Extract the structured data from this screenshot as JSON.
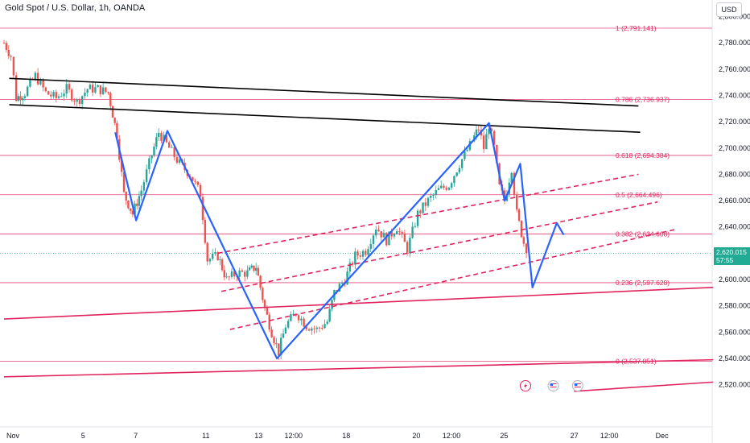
{
  "header": {
    "title": "Gold Spot / U.S. Dollar, 1h, OANDA"
  },
  "currency_button": "USD",
  "last_price": {
    "value": "2,620.015",
    "countdown": "57:55"
  },
  "colors": {
    "up": "#26a69a",
    "down": "#ef5350",
    "fib": "#e0245e",
    "channel": "#e0245e",
    "trendline": "#000000",
    "wave": "#2962ff",
    "last_price": "#22ab94"
  },
  "icons": [
    "lightning-event-icon",
    "us-flag-event-icon",
    "us-flag-event-icon"
  ],
  "chart_data": {
    "type": "candlestick",
    "title": "Gold Spot / U.S. Dollar, 1h, OANDA",
    "ylim": [
      2505,
      2805
    ],
    "y_ticks": [
      2520,
      2540,
      2560,
      2580,
      2600,
      2620,
      2640,
      2660,
      2680,
      2700,
      2720,
      2740,
      2760,
      2780,
      2800
    ],
    "x_ticks": [
      "Nov",
      "5",
      "7",
      "11",
      "13",
      "12:00",
      "18",
      "20",
      "12:00",
      "25",
      "27",
      "12:00",
      "Dec"
    ],
    "x_tick_index": [
      0,
      4,
      7,
      11,
      14,
      16,
      19,
      23,
      25,
      28,
      32,
      34,
      37
    ],
    "fib_levels": [
      {
        "label": "1 (2,791.141)",
        "value": 2791.141
      },
      {
        "label": "0.786 (2,736.937)",
        "value": 2736.937
      },
      {
        "label": "0.618 (2,694.384)",
        "value": 2694.384
      },
      {
        "label": "0.5 (2,664.496)",
        "value": 2664.496
      },
      {
        "label": "0.382 (2,634.608)",
        "value": 2634.608
      },
      {
        "label": "0.236 (2,597.628)",
        "value": 2597.628
      },
      {
        "label": "0 (2,537.851)",
        "value": 2537.851
      }
    ],
    "price_series": [
      {
        "t": 0.0,
        "p": 2780
      },
      {
        "t": 0.4,
        "p": 2770
      },
      {
        "t": 0.7,
        "p": 2738
      },
      {
        "t": 1.2,
        "p": 2742
      },
      {
        "t": 1.8,
        "p": 2755
      },
      {
        "t": 2.4,
        "p": 2742
      },
      {
        "t": 3.0,
        "p": 2738
      },
      {
        "t": 3.6,
        "p": 2745
      },
      {
        "t": 4.2,
        "p": 2735
      },
      {
        "t": 4.8,
        "p": 2745
      },
      {
        "t": 5.4,
        "p": 2745
      },
      {
        "t": 6.0,
        "p": 2742
      },
      {
        "t": 6.5,
        "p": 2710
      },
      {
        "t": 6.9,
        "p": 2665
      },
      {
        "t": 7.4,
        "p": 2650
      },
      {
        "t": 7.9,
        "p": 2668
      },
      {
        "t": 8.5,
        "p": 2695
      },
      {
        "t": 8.9,
        "p": 2712
      },
      {
        "t": 9.5,
        "p": 2700
      },
      {
        "t": 10.1,
        "p": 2688
      },
      {
        "t": 10.7,
        "p": 2680
      },
      {
        "t": 11.3,
        "p": 2665
      },
      {
        "t": 11.7,
        "p": 2615
      },
      {
        "t": 12.3,
        "p": 2618
      },
      {
        "t": 12.8,
        "p": 2600
      },
      {
        "t": 13.4,
        "p": 2605
      },
      {
        "t": 14.0,
        "p": 2605
      },
      {
        "t": 14.5,
        "p": 2610
      },
      {
        "t": 15.0,
        "p": 2578
      },
      {
        "t": 15.4,
        "p": 2560
      },
      {
        "t": 15.8,
        "p": 2545
      },
      {
        "t": 16.2,
        "p": 2565
      },
      {
        "t": 16.8,
        "p": 2575
      },
      {
        "t": 17.4,
        "p": 2565
      },
      {
        "t": 18.0,
        "p": 2562
      },
      {
        "t": 18.6,
        "p": 2568
      },
      {
        "t": 19.0,
        "p": 2590
      },
      {
        "t": 19.6,
        "p": 2600
      },
      {
        "t": 20.2,
        "p": 2618
      },
      {
        "t": 20.8,
        "p": 2622
      },
      {
        "t": 21.4,
        "p": 2640
      },
      {
        "t": 22.0,
        "p": 2630
      },
      {
        "t": 22.6,
        "p": 2640
      },
      {
        "t": 23.2,
        "p": 2623
      },
      {
        "t": 23.8,
        "p": 2650
      },
      {
        "t": 24.4,
        "p": 2660
      },
      {
        "t": 25.0,
        "p": 2668
      },
      {
        "t": 25.6,
        "p": 2672
      },
      {
        "t": 26.2,
        "p": 2688
      },
      {
        "t": 26.8,
        "p": 2702
      },
      {
        "t": 27.3,
        "p": 2715
      },
      {
        "t": 27.6,
        "p": 2700
      },
      {
        "t": 27.9,
        "p": 2718
      },
      {
        "t": 28.2,
        "p": 2700
      },
      {
        "t": 28.5,
        "p": 2670
      },
      {
        "t": 28.8,
        "p": 2660
      },
      {
        "t": 29.2,
        "p": 2685
      },
      {
        "t": 29.5,
        "p": 2650
      },
      {
        "t": 29.9,
        "p": 2628
      },
      {
        "t": 30.2,
        "p": 2620
      }
    ],
    "wave_path": [
      {
        "t": 6.4,
        "p": 2712
      },
      {
        "t": 7.6,
        "p": 2645
      },
      {
        "t": 9.4,
        "p": 2713
      },
      {
        "t": 15.7,
        "p": 2540
      },
      {
        "t": 27.9,
        "p": 2719
      },
      {
        "t": 28.8,
        "p": 2660
      },
      {
        "t": 29.7,
        "p": 2688
      },
      {
        "t": 30.4,
        "p": 2594
      },
      {
        "t": 31.8,
        "p": 2643
      },
      {
        "t": 32.2,
        "p": 2634
      }
    ],
    "trendlines": [
      {
        "style": "solid",
        "color": "black",
        "from": {
          "t": 0.3,
          "p": 2753
        },
        "to": {
          "t": 36.5,
          "p": 2732
        }
      },
      {
        "style": "solid",
        "color": "black",
        "from": {
          "t": 0.3,
          "p": 2733
        },
        "to": {
          "t": 36.6,
          "p": 2712
        }
      },
      {
        "style": "solid",
        "color": "red",
        "from": {
          "t": 0.0,
          "p": 2570
        },
        "to": {
          "t": 40.8,
          "p": 2594
        }
      },
      {
        "style": "solid",
        "color": "red",
        "from": {
          "t": 0.0,
          "p": 2526
        },
        "to": {
          "t": 40.8,
          "p": 2539
        }
      },
      {
        "style": "solid",
        "color": "red",
        "from": {
          "t": 32.8,
          "p": 2515
        },
        "to": {
          "t": 40.8,
          "p": 2522
        }
      },
      {
        "style": "dashed",
        "color": "red",
        "from": {
          "t": 12.3,
          "p": 2620
        },
        "to": {
          "t": 36.5,
          "p": 2680
        }
      },
      {
        "style": "dashed",
        "color": "red",
        "from": {
          "t": 12.5,
          "p": 2591
        },
        "to": {
          "t": 37.6,
          "p": 2659
        }
      },
      {
        "style": "dashed",
        "color": "red",
        "from": {
          "t": 13.0,
          "p": 2562
        },
        "to": {
          "t": 38.6,
          "p": 2638
        }
      }
    ],
    "events": [
      {
        "t": 30.0,
        "icon": "lightning"
      },
      {
        "t": 31.6,
        "icon": "us-flag"
      },
      {
        "t": 33.0,
        "icon": "us-flag"
      }
    ]
  }
}
